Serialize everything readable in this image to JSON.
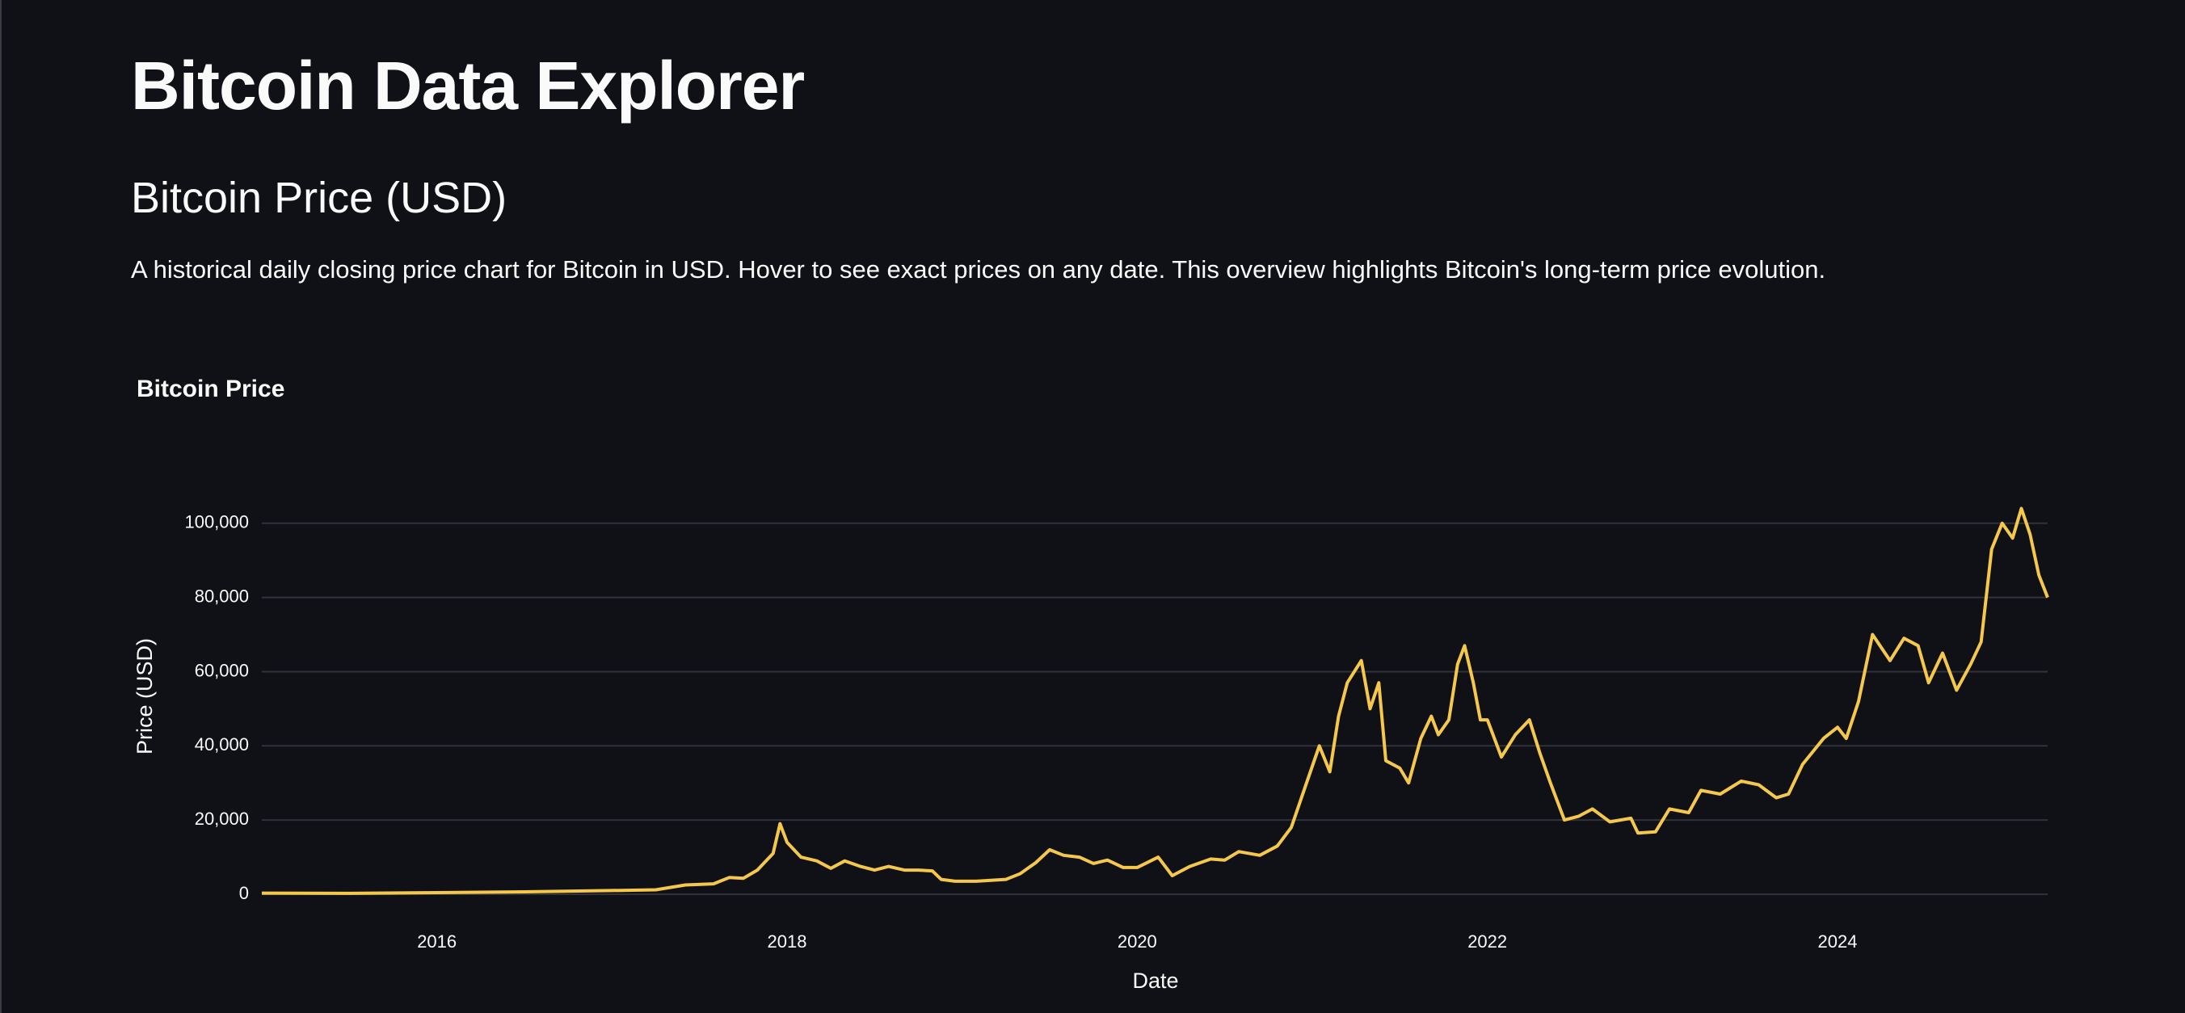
{
  "title": "Bitcoin Data Explorer",
  "subheader": "Bitcoin Price (USD)",
  "description": "A historical daily closing price chart for Bitcoin in USD. Hover to see exact prices on any date. This overview highlights Bitcoin's long-term price evolution.",
  "chart_data": {
    "type": "line",
    "title": "Bitcoin Price",
    "x_label": "Date",
    "y_label": "Price (USD)",
    "color": "#f5c84c",
    "grid": true,
    "x": [
      2015.0,
      2015.5,
      2016.0,
      2016.5,
      2017.0,
      2017.25,
      2017.42,
      2017.58,
      2017.67,
      2017.75,
      2017.83,
      2017.92,
      2017.96,
      2018.0,
      2018.08,
      2018.17,
      2018.25,
      2018.33,
      2018.42,
      2018.5,
      2018.58,
      2018.67,
      2018.75,
      2018.83,
      2018.88,
      2018.96,
      2019.08,
      2019.25,
      2019.33,
      2019.42,
      2019.5,
      2019.58,
      2019.67,
      2019.75,
      2019.83,
      2019.92,
      2020.0,
      2020.12,
      2020.2,
      2020.3,
      2020.42,
      2020.5,
      2020.58,
      2020.7,
      2020.8,
      2020.88,
      2020.96,
      2021.04,
      2021.1,
      2021.15,
      2021.2,
      2021.28,
      2021.33,
      2021.38,
      2021.42,
      2021.5,
      2021.55,
      2021.62,
      2021.68,
      2021.72,
      2021.78,
      2021.83,
      2021.87,
      2021.92,
      2021.96,
      2022.0,
      2022.08,
      2022.16,
      2022.24,
      2022.3,
      2022.36,
      2022.44,
      2022.52,
      2022.6,
      2022.7,
      2022.82,
      2022.86,
      2022.96,
      2023.04,
      2023.15,
      2023.22,
      2023.33,
      2023.45,
      2023.55,
      2023.65,
      2023.72,
      2023.8,
      2023.92,
      2024.0,
      2024.05,
      2024.12,
      2024.2,
      2024.3,
      2024.38,
      2024.46,
      2024.52,
      2024.6,
      2024.68,
      2024.76,
      2024.82,
      2024.88,
      2024.94,
      2025.0,
      2025.05,
      2025.1,
      2025.15,
      2025.2
    ],
    "values": [
      300,
      250,
      430,
      650,
      1000,
      1200,
      2500,
      2800,
      4500,
      4300,
      6500,
      11000,
      19000,
      14000,
      10000,
      9000,
      7000,
      9000,
      7500,
      6500,
      7500,
      6500,
      6500,
      6300,
      4000,
      3500,
      3500,
      4000,
      5500,
      8500,
      12000,
      10500,
      10000,
      8300,
      9200,
      7200,
      7200,
      10000,
      5000,
      7500,
      9500,
      9200,
      11500,
      10500,
      13000,
      18000,
      29000,
      40000,
      33000,
      48000,
      57000,
      63000,
      50000,
      57000,
      36000,
      34000,
      30000,
      42000,
      48000,
      43000,
      47000,
      62000,
      67000,
      57000,
      47000,
      47000,
      37000,
      43000,
      47000,
      38000,
      30000,
      20000,
      21000,
      23000,
      19500,
      20500,
      16500,
      16800,
      23000,
      22000,
      28000,
      27000,
      30500,
      29500,
      26000,
      27000,
      35000,
      42000,
      45000,
      42000,
      52000,
      70000,
      63000,
      69000,
      67000,
      57000,
      65000,
      55000,
      62000,
      68000,
      93000,
      100000,
      96000,
      104000,
      97000,
      86000,
      80000
    ],
    "xlim": [
      2015.0,
      2025.2
    ],
    "xticks": [
      2016,
      2018,
      2020,
      2022,
      2024
    ],
    "ylim": [
      0,
      108000
    ],
    "yticks": [
      0,
      {
        "value": 20000,
        "label": "20,000"
      },
      {
        "value": 40000,
        "label": "40,000"
      },
      {
        "value": 60000,
        "label": "60,000"
      },
      {
        "value": 80000,
        "label": "80,000"
      },
      {
        "value": 100000,
        "label": "100,000"
      }
    ]
  }
}
